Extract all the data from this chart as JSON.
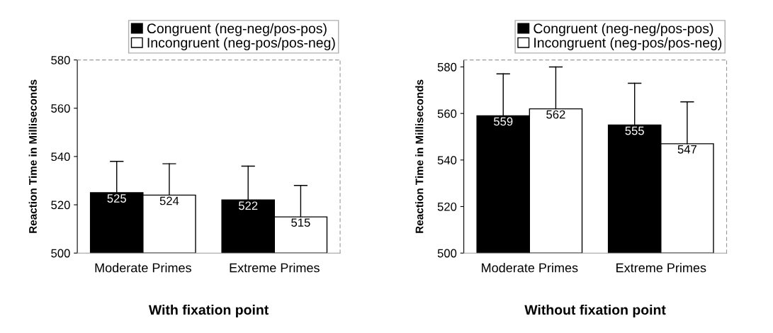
{
  "chart_data": [
    {
      "type": "bar",
      "title": "With fixation point",
      "ylabel": "Reaction Time in Milliseconds",
      "categories": [
        "Moderate Primes",
        "Extreme Primes"
      ],
      "series": [
        {
          "name": "Congruent (neg-neg/pos-pos)",
          "color": "#000000",
          "values": [
            525,
            522
          ],
          "errors": [
            [
              525,
              538
            ],
            [
              522,
              536
            ]
          ]
        },
        {
          "name": "Incongruent (neg-pos/pos-neg)",
          "color": "#ffffff",
          "values": [
            524,
            515
          ],
          "errors": [
            [
              524,
              537
            ],
            [
              515,
              528
            ]
          ]
        }
      ],
      "ylim": [
        500,
        580
      ],
      "yticks": [
        500,
        520,
        540,
        560,
        580
      ],
      "data_labels": true,
      "legend": "top",
      "grid": false
    },
    {
      "type": "bar",
      "title": "Without fixation point",
      "ylabel": "Reaction Time in Milliseconds",
      "categories": [
        "Moderate Primes",
        "Extreme Primes"
      ],
      "series": [
        {
          "name": "Congruent (neg-neg/pos-pos)",
          "color": "#000000",
          "values": [
            559,
            555
          ],
          "errors": [
            [
              559,
              577
            ],
            [
              555,
              573
            ]
          ]
        },
        {
          "name": "Incongruent (neg-pos/pos-neg)",
          "color": "#ffffff",
          "values": [
            562,
            547
          ],
          "errors": [
            [
              562,
              580
            ],
            [
              547,
              565
            ]
          ]
        }
      ],
      "ylim": [
        500,
        583
      ],
      "yticks": [
        500,
        520,
        540,
        560,
        580
      ],
      "data_labels": true,
      "legend": "top",
      "grid": false
    }
  ]
}
